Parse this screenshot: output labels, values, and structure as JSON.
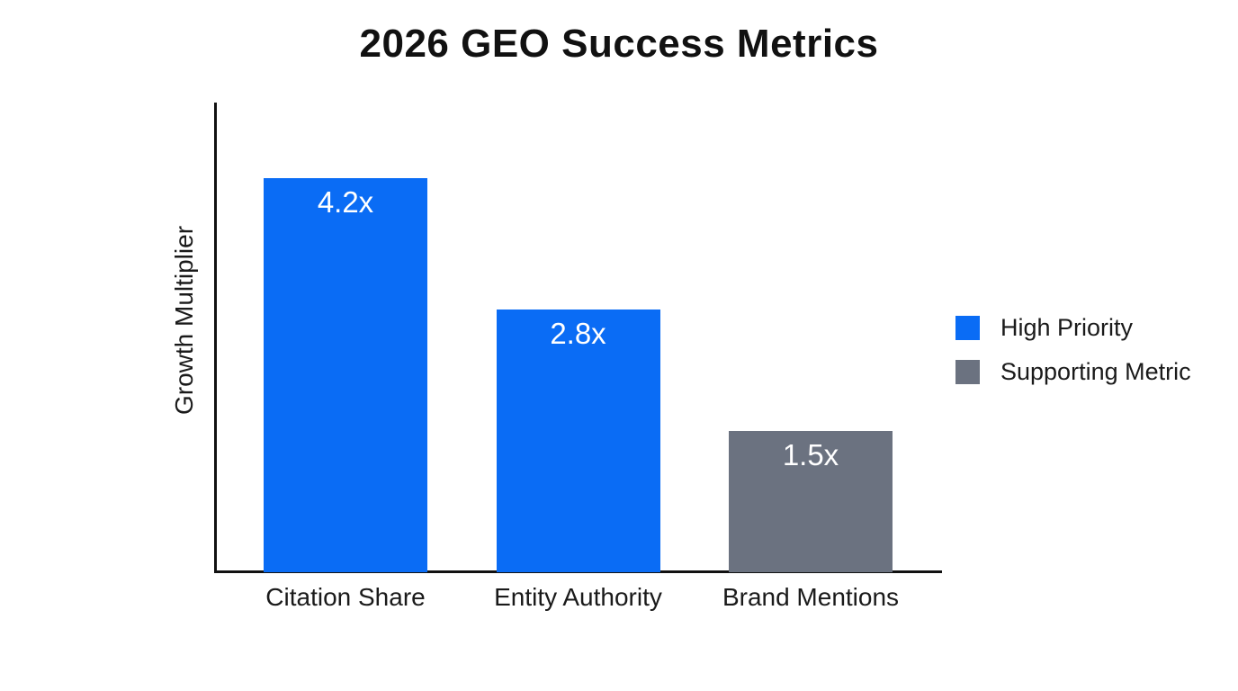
{
  "chart_data": {
    "type": "bar",
    "title": "2026 GEO Success Metrics",
    "xlabel": "",
    "ylabel": "Growth Multiplier",
    "categories": [
      "Citation Share",
      "Entity Authority",
      "Brand Mentions"
    ],
    "values": [
      4.2,
      2.8,
      1.5
    ],
    "value_labels": [
      "4.2x",
      "2.8x",
      "1.5x"
    ],
    "bar_colors": [
      "#0a6cf5",
      "#0a6cf5",
      "#6b7280"
    ],
    "ylim": [
      0,
      5
    ],
    "grid": false,
    "y_tick_labels": "none",
    "legend_position": "right",
    "legend": [
      {
        "label": "High Priority",
        "color": "#0a6cf5"
      },
      {
        "label": "Supporting Metric",
        "color": "#6b7280"
      }
    ],
    "colors": {
      "high_priority_bar": "#0a6cf5",
      "supporting_bar": "#6b7280",
      "axis": "#111111",
      "label_text": "#1a1a1a",
      "value_label_text": "#ffffff",
      "background": "#ffffff"
    }
  }
}
